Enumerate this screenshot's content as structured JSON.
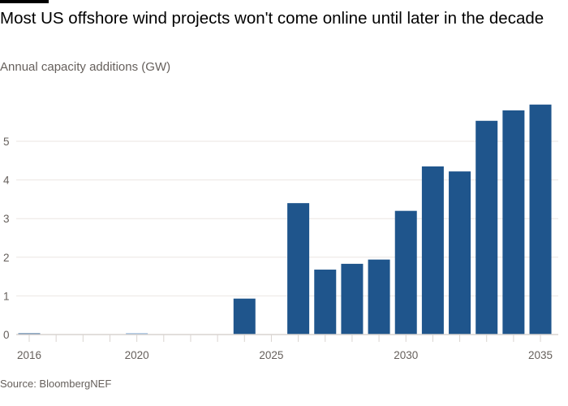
{
  "chart_data": {
    "type": "bar",
    "title": "Most US offshore wind projects won't come online until later in the decade",
    "subtitle": "Annual capacity additions (GW)",
    "xlabel": "",
    "ylabel": "",
    "categories": [
      2016,
      2017,
      2018,
      2019,
      2020,
      2021,
      2022,
      2023,
      2024,
      2025,
      2026,
      2027,
      2028,
      2029,
      2030,
      2031,
      2032,
      2033,
      2034,
      2035
    ],
    "values": [
      0.03,
      0,
      0,
      0,
      0.01,
      0,
      0,
      0,
      0.93,
      0,
      3.4,
      1.68,
      1.83,
      1.94,
      3.2,
      4.35,
      4.22,
      5.53,
      5.8,
      5.95
    ],
    "ylim": [
      0,
      6
    ],
    "yticks": [
      0,
      1,
      2,
      3,
      4,
      5
    ],
    "xticks": [
      2016,
      2020,
      2025,
      2030,
      2035
    ],
    "grid": true,
    "bar_color": "#1f558c",
    "highlight_color": "#6d9ccf",
    "source": "Source: BloombergNEF"
  }
}
